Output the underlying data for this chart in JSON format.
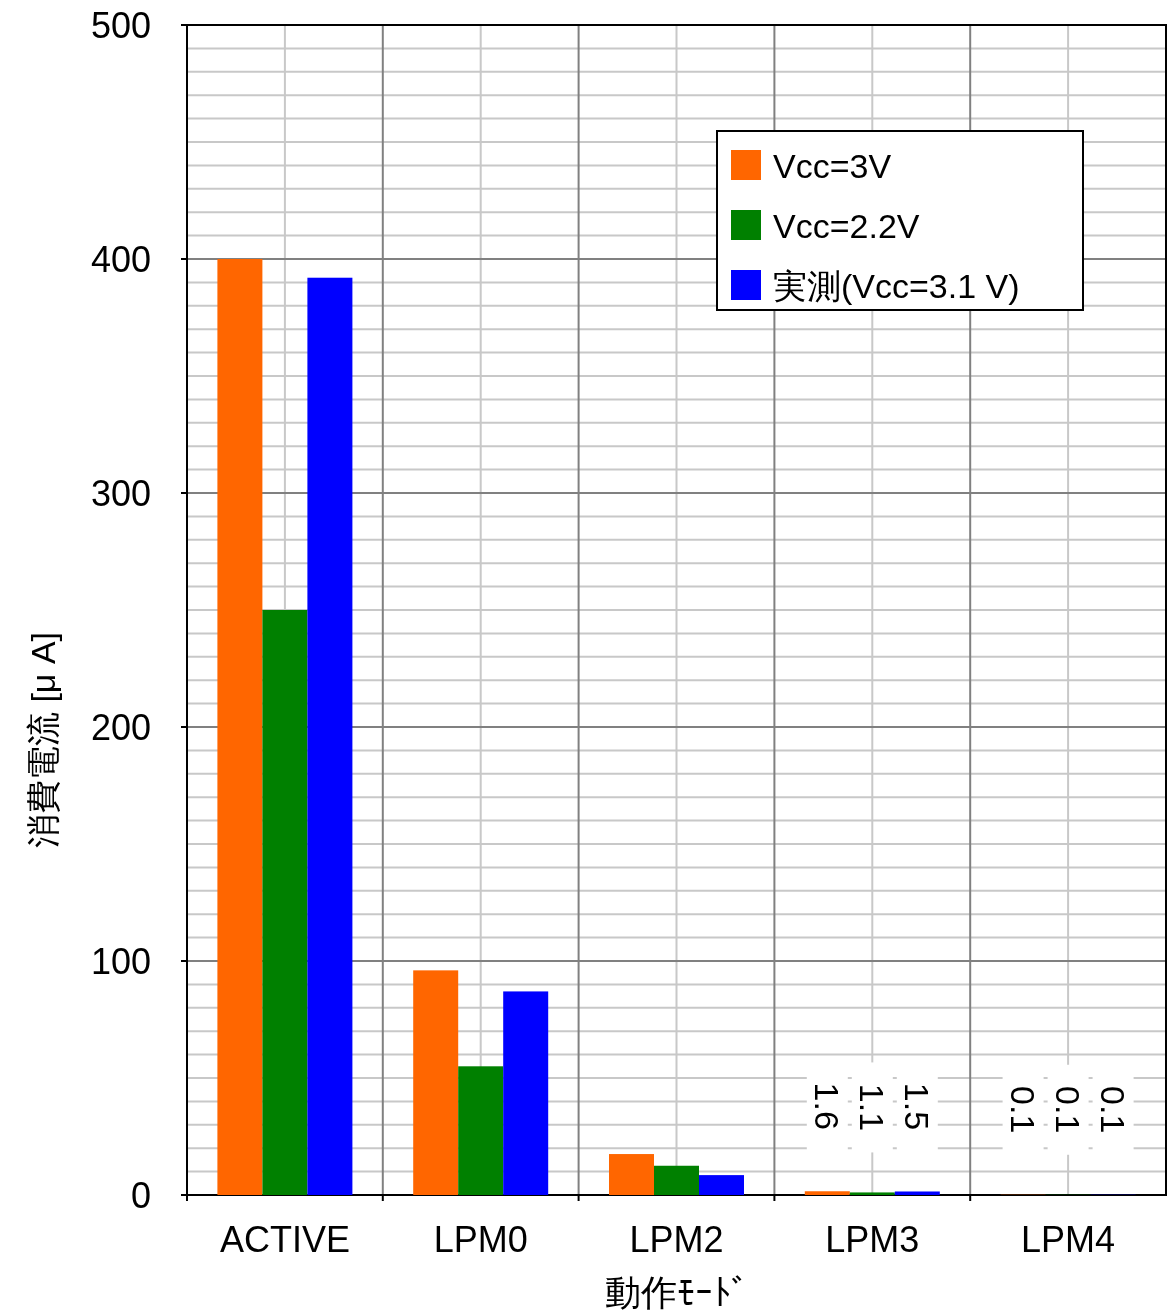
{
  "chart_data": {
    "type": "bar",
    "xlabel": "動作ﾓｰﾄﾞ",
    "ylabel": "消費電流 [μ A]",
    "categories": [
      "ACTIVE",
      "LPM0",
      "LPM2",
      "LPM3",
      "LPM4"
    ],
    "series": [
      {
        "name": "Vcc=3V",
        "color": "#ff6600",
        "values": [
          400,
          96,
          17.5,
          1.6,
          0.1
        ],
        "value_labels": [
          null,
          null,
          null,
          "1.6",
          "0.1"
        ]
      },
      {
        "name": "Vcc=2.2V",
        "color": "#008000",
        "values": [
          250,
          55,
          12.5,
          1.1,
          0.1
        ],
        "value_labels": [
          null,
          null,
          null,
          "1.1",
          "0.1"
        ]
      },
      {
        "name": "実測(Vcc=3.1 V)",
        "color": "#0000ff",
        "values": [
          392,
          87,
          8.5,
          1.5,
          0.1
        ],
        "value_labels": [
          null,
          null,
          null,
          "1.5",
          "0.1"
        ]
      }
    ],
    "ylim": [
      0,
      500
    ],
    "yticks": [
      0,
      100,
      200,
      300,
      400,
      500
    ],
    "grid": true,
    "legend": "top right"
  }
}
